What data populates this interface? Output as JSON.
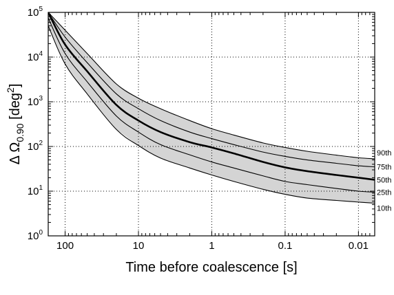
{
  "chart_data": {
    "type": "area",
    "xlabel": "Time before coalescence [s]",
    "ylabel": {
      "main": "Δ Ω",
      "subscript": "0.90",
      "unit_open": " [deg",
      "unit_sup": "2",
      "unit_close": "]"
    },
    "x_scale": "log",
    "x_reversed": true,
    "xlim": [
      170,
      0.006
    ],
    "y_scale": "log",
    "ylim": [
      1,
      100000
    ],
    "grid": true,
    "x_ticks": [
      100,
      10,
      1,
      0.1,
      0.01
    ],
    "x_tick_labels": [
      "100",
      "10",
      "1",
      "0.1",
      "0.01"
    ],
    "y_ticks": [
      1,
      10,
      100,
      1000,
      10000,
      100000
    ],
    "y_tick_labels": [
      {
        "base": "10",
        "exp": "0"
      },
      {
        "base": "10",
        "exp": "1"
      },
      {
        "base": "10",
        "exp": "2"
      },
      {
        "base": "10",
        "exp": "3"
      },
      {
        "base": "10",
        "exp": "4"
      },
      {
        "base": "10",
        "exp": "5"
      }
    ],
    "x": [
      170,
      100,
      50,
      20,
      10,
      5,
      2,
      1,
      0.5,
      0.2,
      0.1,
      0.05,
      0.02,
      0.01,
      0.006
    ],
    "series": [
      {
        "name": "90th",
        "values": [
          100000,
          40000,
          12000,
          2500,
          1200,
          700,
          380,
          250,
          180,
          120,
          95,
          78,
          64,
          56,
          53
        ],
        "fill": true
      },
      {
        "name": "75th",
        "values": [
          100000,
          28000,
          7500,
          1500,
          700,
          380,
          210,
          150,
          110,
          75,
          60,
          50,
          42,
          37,
          35
        ],
        "fill": false
      },
      {
        "name": "50th",
        "values": [
          100000,
          19000,
          4800,
          850,
          380,
          210,
          125,
          95,
          70,
          45,
          34,
          28,
          23,
          20,
          18
        ],
        "fill": false
      },
      {
        "name": "25th",
        "values": [
          75000,
          12000,
          2800,
          480,
          210,
          110,
          65,
          45,
          33,
          22,
          16.5,
          14,
          11.5,
          10,
          9.5
        ],
        "fill": false
      },
      {
        "name": "10th",
        "values": [
          50000,
          7000,
          1500,
          240,
          105,
          55,
          33,
          23,
          16.5,
          11,
          8.5,
          7,
          6.2,
          5.7,
          5.4
        ],
        "fill": true
      }
    ],
    "median_series": "50th",
    "band_color": "#d4d4d4",
    "line_color": "#000000"
  }
}
